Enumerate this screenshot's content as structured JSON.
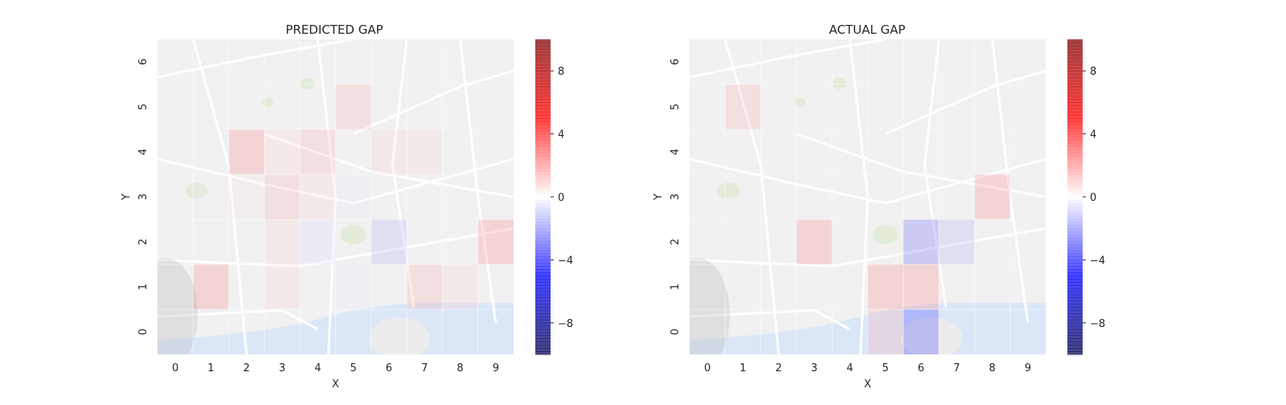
{
  "chart_data": [
    {
      "type": "heatmap",
      "title": "PREDICTED GAP",
      "xlabel": "X",
      "ylabel": "Y",
      "x_ticks": [
        "0",
        "1",
        "2",
        "3",
        "4",
        "5",
        "6",
        "7",
        "8",
        "9"
      ],
      "y_ticks": [
        "0",
        "1",
        "2",
        "3",
        "4",
        "5",
        "6"
      ],
      "colormap": "seismic",
      "vmin": -10,
      "vmax": 10,
      "colorbar_ticks": [
        "8",
        "4",
        "0",
        "−4",
        "−8"
      ],
      "colorbar_values": [
        8,
        4,
        0,
        -4,
        -8
      ],
      "background": "street map",
      "values": [
        [
          0,
          0,
          0,
          0,
          0,
          0,
          0,
          0,
          0,
          0
        ],
        [
          0,
          3,
          0,
          1,
          0,
          -0.5,
          0,
          2,
          1,
          0
        ],
        [
          0,
          0,
          0,
          1,
          -0.8,
          0,
          -2,
          0,
          0,
          3
        ],
        [
          0,
          -0.3,
          0.5,
          2,
          1,
          -0.4,
          0,
          0,
          0,
          0
        ],
        [
          0,
          0,
          3,
          1,
          2,
          0,
          1,
          1,
          0,
          0
        ],
        [
          0,
          0,
          0,
          0,
          0,
          2,
          0,
          0,
          0,
          0
        ],
        [
          0,
          0,
          0,
          0,
          0,
          0,
          0,
          0,
          0,
          0
        ]
      ]
    },
    {
      "type": "heatmap",
      "title": "ACTUAL GAP",
      "xlabel": "X",
      "ylabel": "Y",
      "x_ticks": [
        "0",
        "1",
        "2",
        "3",
        "4",
        "5",
        "6",
        "7",
        "8",
        "9"
      ],
      "y_ticks": [
        "0",
        "1",
        "2",
        "3",
        "4",
        "5",
        "6"
      ],
      "colormap": "seismic",
      "vmin": -10,
      "vmax": 10,
      "colorbar_ticks": [
        "8",
        "4",
        "0",
        "−4",
        "−8"
      ],
      "colorbar_values": [
        8,
        4,
        0,
        -4,
        -8
      ],
      "background": "street map",
      "values": [
        [
          0,
          0,
          0,
          0,
          0,
          2,
          -5,
          0,
          0,
          0
        ],
        [
          0,
          0,
          0,
          0,
          0,
          3,
          3,
          0,
          0,
          0
        ],
        [
          0,
          0,
          0,
          3,
          0,
          0,
          -4,
          -2,
          0,
          0
        ],
        [
          0,
          0,
          0,
          0,
          0,
          0,
          0,
          0,
          3,
          0
        ],
        [
          0,
          0,
          0,
          0,
          0,
          0,
          0,
          0,
          0,
          0
        ],
        [
          0,
          2,
          0,
          0,
          0,
          0,
          0,
          0,
          0,
          0
        ],
        [
          0,
          0,
          0,
          0,
          0,
          0,
          0,
          0,
          0,
          0
        ]
      ]
    }
  ]
}
